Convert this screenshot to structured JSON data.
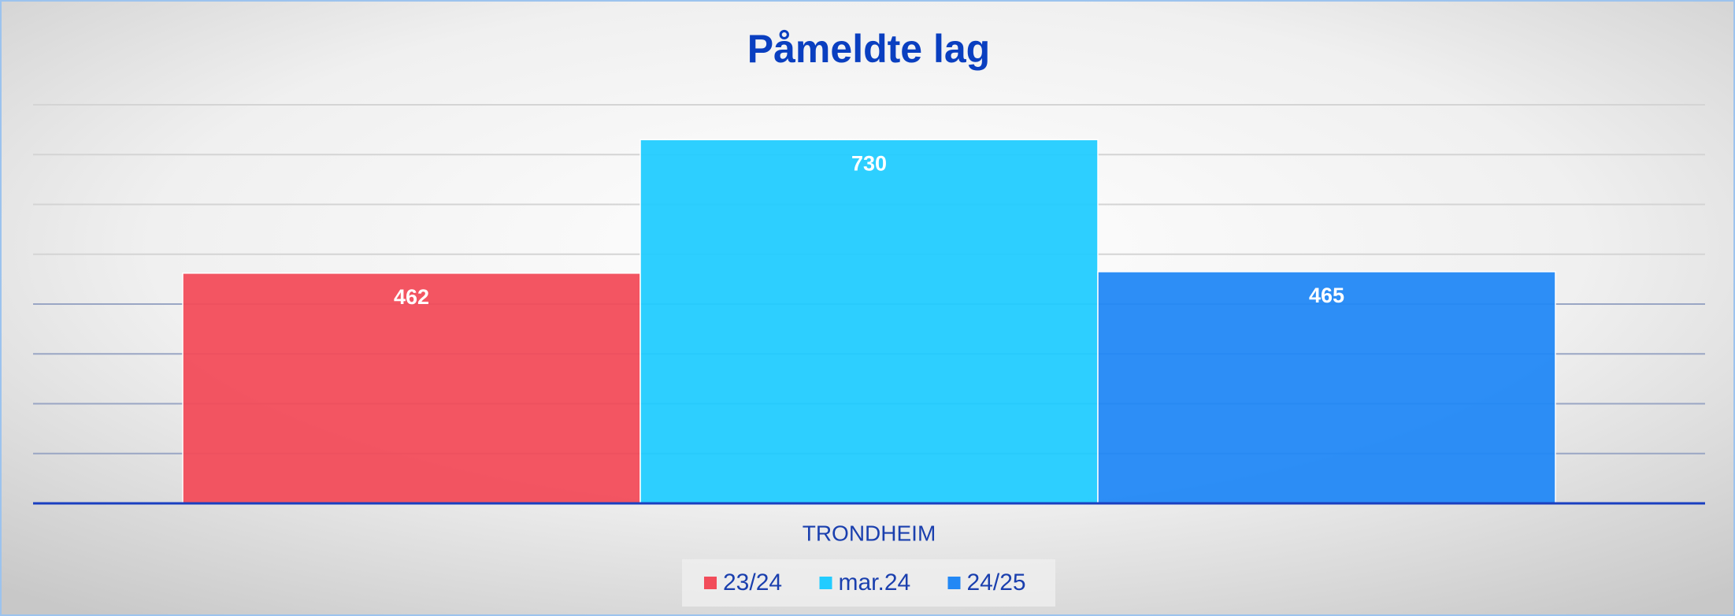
{
  "chart_data": {
    "type": "bar",
    "title": "Påmeldte lag",
    "categories": [
      "TRONDHEIM"
    ],
    "series": [
      {
        "name": "23/24",
        "color": "#f24c5a",
        "values": [
          462
        ]
      },
      {
        "name": "mar.24",
        "color": "#22ccff",
        "values": [
          730
        ]
      },
      {
        "name": "24/25",
        "color": "#2288f5",
        "values": [
          465
        ]
      }
    ],
    "ylim": [
      0,
      800
    ],
    "yticks": [
      0,
      100,
      200,
      300,
      400,
      500,
      600,
      700,
      800
    ],
    "grid": true,
    "legend": "bottom",
    "data_labels": true
  }
}
